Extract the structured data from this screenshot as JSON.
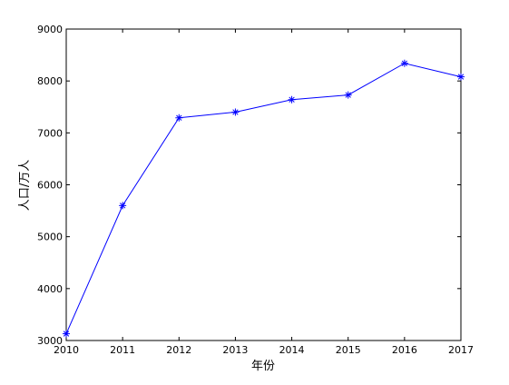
{
  "chart_data": {
    "type": "line",
    "title": "",
    "xlabel": "年份",
    "ylabel": "人口/万人",
    "x": [
      2010,
      2011,
      2012,
      2013,
      2014,
      2015,
      2016,
      2017
    ],
    "xticks": [
      "2010",
      "2011",
      "2012",
      "2013",
      "2014",
      "2015",
      "2016",
      "2017"
    ],
    "yticks": [
      "3000",
      "4000",
      "5000",
      "6000",
      "7000",
      "8000",
      "9000"
    ],
    "xlim": [
      2010,
      2017
    ],
    "ylim": [
      3000,
      9000
    ],
    "grid": false,
    "series": [
      {
        "values": [
          3130,
          5600,
          7290,
          7400,
          7640,
          7730,
          8340,
          8080
        ],
        "color": "#0000ff",
        "marker": "asterisk"
      }
    ]
  }
}
